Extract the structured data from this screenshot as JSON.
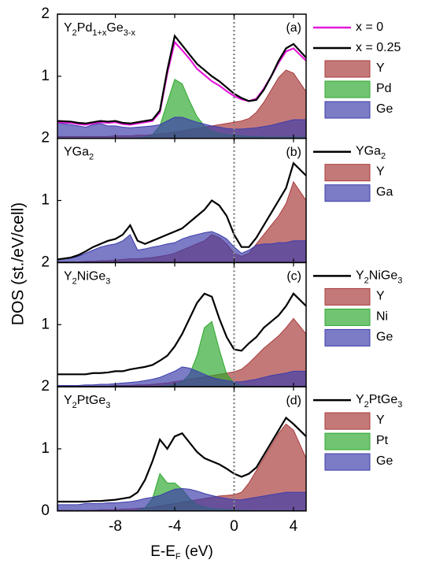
{
  "y_label": "DOS (st./eV/cell)",
  "x_axis": {
    "label": [
      "E-E",
      "F",
      " (eV)"
    ],
    "xlim": [
      -11.9,
      4.85
    ],
    "xticks": [
      -8,
      -4,
      0,
      4
    ],
    "vline": 0
  },
  "chart_data": [
    {
      "type": "line",
      "label": [
        "Y",
        "2",
        "Pd",
        "1+x",
        "Ge",
        "3-x"
      ],
      "tag": "(a)",
      "ylim": [
        0,
        2
      ],
      "yticks": [
        1,
        2
      ],
      "x": [
        -11.9,
        -11,
        -10.5,
        -10,
        -9.5,
        -9,
        -8.5,
        -8,
        -7.5,
        -7,
        -6.5,
        -6,
        -5.5,
        -5,
        -4.5,
        -4,
        -3.5,
        -3,
        -2.5,
        -2,
        -1.5,
        -1,
        -0.5,
        0,
        0.5,
        1,
        1.5,
        2,
        2.5,
        3,
        3.5,
        4,
        4.85
      ],
      "series": [
        {
          "name": [
            "x = 0"
          ],
          "color": "#e619d9",
          "fill": false,
          "values": [
            0.26,
            0.25,
            0.23,
            0.22,
            0.24,
            0.26,
            0.25,
            0.26,
            0.23,
            0.22,
            0.24,
            0.26,
            0.28,
            0.42,
            1.05,
            1.55,
            1.42,
            1.28,
            1.12,
            1.02,
            0.92,
            0.85,
            0.76,
            0.68,
            0.63,
            0.6,
            0.64,
            0.8,
            1.0,
            1.22,
            1.4,
            1.45,
            1.25
          ]
        },
        {
          "name": [
            "x = 0.25"
          ],
          "color": "#000000",
          "fill": false,
          "values": [
            0.28,
            0.27,
            0.25,
            0.24,
            0.26,
            0.28,
            0.27,
            0.28,
            0.25,
            0.24,
            0.26,
            0.28,
            0.3,
            0.45,
            1.1,
            1.65,
            1.5,
            1.35,
            1.2,
            1.1,
            1.0,
            0.92,
            0.82,
            0.72,
            0.65,
            0.6,
            0.62,
            0.78,
            1.0,
            1.25,
            1.45,
            1.52,
            1.3
          ]
        },
        {
          "name": [
            "Y"
          ],
          "color": "#a83a3a",
          "fill": true,
          "values": [
            0.03,
            0.03,
            0.03,
            0.03,
            0.03,
            0.03,
            0.03,
            0.04,
            0.04,
            0.04,
            0.05,
            0.05,
            0.06,
            0.07,
            0.08,
            0.1,
            0.12,
            0.14,
            0.16,
            0.18,
            0.2,
            0.22,
            0.24,
            0.26,
            0.28,
            0.32,
            0.42,
            0.58,
            0.78,
            0.98,
            1.1,
            1.05,
            0.75
          ]
        },
        {
          "name": [
            "Pd"
          ],
          "color": "#2ea82e",
          "fill": true,
          "values": [
            0,
            0,
            0,
            0,
            0,
            0,
            0,
            0,
            0,
            0,
            0.01,
            0.02,
            0.06,
            0.2,
            0.58,
            0.95,
            0.88,
            0.6,
            0.35,
            0.2,
            0.12,
            0.08,
            0.06,
            0.05,
            0.04,
            0.03,
            0.03,
            0.02,
            0.02,
            0.02,
            0.02,
            0.02,
            0.02
          ]
        },
        {
          "name": [
            "Ge"
          ],
          "color": "#3d3dab",
          "fill": true,
          "values": [
            0.25,
            0.22,
            0.2,
            0.18,
            0.22,
            0.24,
            0.2,
            0.2,
            0.18,
            0.17,
            0.18,
            0.19,
            0.2,
            0.22,
            0.28,
            0.34,
            0.34,
            0.3,
            0.26,
            0.23,
            0.2,
            0.18,
            0.16,
            0.15,
            0.15,
            0.16,
            0.17,
            0.19,
            0.21,
            0.24,
            0.27,
            0.3,
            0.3
          ]
        }
      ]
    },
    {
      "type": "line",
      "label": [
        "YGa",
        "2"
      ],
      "tag": "(b)",
      "ylim": [
        0,
        2
      ],
      "yticks": [
        1,
        2
      ],
      "x": [
        -11.9,
        -11,
        -10.5,
        -10,
        -9.5,
        -9,
        -8.5,
        -8,
        -7.5,
        -7,
        -6.5,
        -6,
        -5.5,
        -5,
        -4.5,
        -4,
        -3.5,
        -3,
        -2.5,
        -2,
        -1.5,
        -1,
        -0.5,
        0,
        0.5,
        1,
        1.5,
        2,
        2.5,
        3,
        3.5,
        4,
        4.85
      ],
      "series": [
        {
          "name": [
            "YGa",
            "2"
          ],
          "color": "#000000",
          "fill": false,
          "values": [
            0.05,
            0.08,
            0.12,
            0.18,
            0.25,
            0.3,
            0.35,
            0.38,
            0.45,
            0.6,
            0.35,
            0.3,
            0.35,
            0.4,
            0.45,
            0.5,
            0.55,
            0.65,
            0.75,
            0.85,
            1.0,
            0.92,
            0.75,
            0.45,
            0.25,
            0.25,
            0.4,
            0.6,
            0.8,
            1.0,
            1.2,
            1.6,
            1.4
          ]
        },
        {
          "name": [
            "Y"
          ],
          "color": "#a83a3a",
          "fill": true,
          "values": [
            0.01,
            0.01,
            0.01,
            0.02,
            0.02,
            0.03,
            0.03,
            0.04,
            0.05,
            0.06,
            0.06,
            0.07,
            0.08,
            0.1,
            0.12,
            0.15,
            0.2,
            0.25,
            0.3,
            0.35,
            0.45,
            0.4,
            0.3,
            0.15,
            0.1,
            0.15,
            0.3,
            0.45,
            0.6,
            0.75,
            0.95,
            1.3,
            1.0
          ]
        },
        {
          "name": [
            "Ga"
          ],
          "color": "#3d3dab",
          "fill": true,
          "values": [
            0.05,
            0.07,
            0.1,
            0.15,
            0.2,
            0.25,
            0.28,
            0.3,
            0.35,
            0.45,
            0.2,
            0.22,
            0.25,
            0.27,
            0.3,
            0.32,
            0.38,
            0.42,
            0.45,
            0.48,
            0.5,
            0.45,
            0.38,
            0.25,
            0.15,
            0.2,
            0.28,
            0.3,
            0.3,
            0.32,
            0.32,
            0.35,
            0.35
          ]
        }
      ]
    },
    {
      "type": "line",
      "label": [
        "Y",
        "2",
        "NiGe",
        "3"
      ],
      "tag": "(c)",
      "ylim": [
        0,
        2
      ],
      "yticks": [
        1,
        2
      ],
      "x": [
        -11.9,
        -11,
        -10.5,
        -10,
        -9.5,
        -9,
        -8.5,
        -8,
        -7.5,
        -7,
        -6.5,
        -6,
        -5.5,
        -5,
        -4.5,
        -4,
        -3.5,
        -3,
        -2.5,
        -2,
        -1.5,
        -1,
        -0.5,
        0,
        0.5,
        1,
        1.5,
        2,
        2.5,
        3,
        3.5,
        4,
        4.85
      ],
      "series": [
        {
          "name": [
            "Y",
            "2",
            "NiGe",
            "3"
          ],
          "color": "#000000",
          "fill": false,
          "values": [
            0.2,
            0.2,
            0.2,
            0.2,
            0.22,
            0.22,
            0.23,
            0.25,
            0.25,
            0.28,
            0.3,
            0.32,
            0.35,
            0.42,
            0.5,
            0.65,
            0.85,
            1.1,
            1.35,
            1.5,
            1.45,
            1.1,
            0.8,
            0.6,
            0.58,
            0.7,
            0.8,
            0.95,
            1.05,
            1.15,
            1.3,
            1.5,
            1.3
          ]
        },
        {
          "name": [
            "Y"
          ],
          "color": "#a83a3a",
          "fill": true,
          "values": [
            0.01,
            0.01,
            0.01,
            0.01,
            0.01,
            0.01,
            0.01,
            0.02,
            0.02,
            0.02,
            0.03,
            0.03,
            0.04,
            0.05,
            0.06,
            0.08,
            0.1,
            0.12,
            0.14,
            0.16,
            0.18,
            0.2,
            0.22,
            0.24,
            0.28,
            0.38,
            0.5,
            0.62,
            0.72,
            0.82,
            0.95,
            1.1,
            0.85
          ]
        },
        {
          "name": [
            "Ni"
          ],
          "color": "#2ea82e",
          "fill": true,
          "values": [
            0,
            0,
            0,
            0,
            0,
            0,
            0,
            0,
            0,
            0,
            0,
            0,
            0,
            0.01,
            0.02,
            0.04,
            0.08,
            0.2,
            0.5,
            0.95,
            1.05,
            0.6,
            0.2,
            0.06,
            0.02,
            0.01,
            0,
            0,
            0,
            0,
            0,
            0,
            0
          ]
        },
        {
          "name": [
            "Ge"
          ],
          "color": "#3d3dab",
          "fill": true,
          "values": [
            0.02,
            0.02,
            0.02,
            0.03,
            0.03,
            0.04,
            0.04,
            0.05,
            0.06,
            0.07,
            0.08,
            0.1,
            0.12,
            0.15,
            0.2,
            0.25,
            0.32,
            0.3,
            0.25,
            0.2,
            0.15,
            0.12,
            0.1,
            0.08,
            0.08,
            0.1,
            0.12,
            0.15,
            0.18,
            0.2,
            0.22,
            0.25,
            0.25
          ]
        }
      ]
    },
    {
      "type": "line",
      "label": [
        "Y",
        "2",
        "PtGe",
        "3"
      ],
      "tag": "(d)",
      "ylim": [
        0,
        2
      ],
      "yticks": [
        0,
        1,
        2
      ],
      "x": [
        -11.9,
        -11,
        -10.5,
        -10,
        -9.5,
        -9,
        -8.5,
        -8,
        -7.5,
        -7,
        -6.5,
        -6,
        -5.5,
        -5,
        -4.5,
        -4,
        -3.5,
        -3,
        -2.5,
        -2,
        -1.5,
        -1,
        -0.5,
        0,
        0.5,
        1,
        1.5,
        2,
        2.5,
        3,
        3.5,
        4,
        4.85
      ],
      "series": [
        {
          "name": [
            "Y",
            "2",
            "PtGe",
            "3"
          ],
          "color": "#000000",
          "fill": false,
          "values": [
            0.15,
            0.15,
            0.15,
            0.15,
            0.16,
            0.16,
            0.17,
            0.18,
            0.2,
            0.22,
            0.3,
            0.5,
            0.8,
            1.15,
            1.0,
            1.2,
            1.25,
            1.1,
            0.95,
            0.85,
            0.8,
            0.75,
            0.68,
            0.6,
            0.55,
            0.6,
            0.7,
            0.9,
            1.1,
            1.3,
            1.5,
            1.4,
            1.2
          ]
        },
        {
          "name": [
            "Y"
          ],
          "color": "#a83a3a",
          "fill": true,
          "values": [
            0.01,
            0.01,
            0.01,
            0.01,
            0.01,
            0.02,
            0.02,
            0.02,
            0.03,
            0.03,
            0.04,
            0.05,
            0.06,
            0.08,
            0.1,
            0.12,
            0.14,
            0.16,
            0.18,
            0.2,
            0.22,
            0.24,
            0.25,
            0.26,
            0.3,
            0.45,
            0.65,
            0.85,
            1.05,
            1.25,
            1.4,
            1.3,
            0.85
          ]
        },
        {
          "name": [
            "Pt"
          ],
          "color": "#2ea82e",
          "fill": true,
          "values": [
            0,
            0,
            0,
            0,
            0,
            0,
            0,
            0,
            0,
            0,
            0.01,
            0.05,
            0.2,
            0.6,
            0.45,
            0.45,
            0.35,
            0.2,
            0.1,
            0.06,
            0.04,
            0.03,
            0.02,
            0.02,
            0.01,
            0.01,
            0,
            0,
            0,
            0,
            0,
            0,
            0
          ]
        },
        {
          "name": [
            "Ge"
          ],
          "color": "#3d3dab",
          "fill": true,
          "values": [
            0.1,
            0.1,
            0.1,
            0.12,
            0.12,
            0.12,
            0.13,
            0.13,
            0.14,
            0.15,
            0.17,
            0.2,
            0.22,
            0.25,
            0.3,
            0.35,
            0.36,
            0.35,
            0.32,
            0.28,
            0.25,
            0.22,
            0.2,
            0.18,
            0.18,
            0.2,
            0.22,
            0.24,
            0.26,
            0.28,
            0.3,
            0.3,
            0.3
          ]
        }
      ]
    }
  ]
}
